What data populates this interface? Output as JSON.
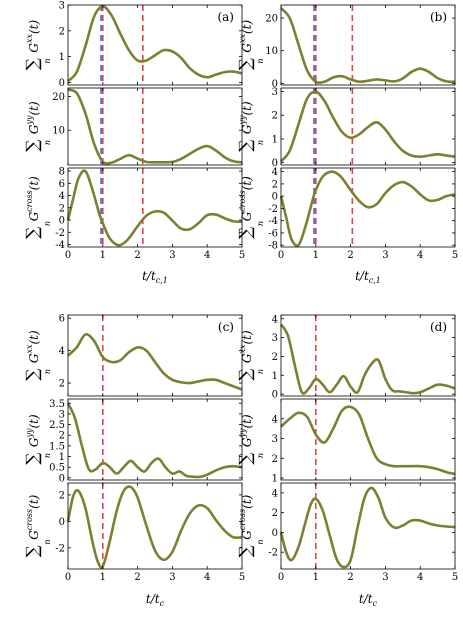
{
  "figure": {
    "colors": {
      "curve": "#7f7f30",
      "red_line": "#e0434b",
      "blue_line": "#3f5fd8",
      "axis": "#000000"
    },
    "panels": [
      {
        "id": "a",
        "label": "(a)",
        "xlabel_main": "t/t",
        "xlabel_sub": "c,1",
        "rows": [
          {
            "ylabel_main": "G",
            "ylabel_sup": "xx",
            "ylabel_arg": "(t)",
            "ylabel_sum_sub": "n",
            "ylim": [
              -0.1,
              3
            ],
            "yticks": [
              0,
              1,
              2,
              3
            ]
          },
          {
            "ylabel_main": "G",
            "ylabel_sup": "yy",
            "ylabel_arg": "(t)",
            "ylabel_sum_sub": "n",
            "ylim": [
              -0.3,
              22.5
            ],
            "yticks": [
              10,
              20
            ]
          },
          {
            "ylabel_main": "G",
            "ylabel_sup": "cross",
            "ylabel_arg": "(t)",
            "ylabel_sum_sub": "n",
            "ylim": [
              -4.4,
              8.5
            ],
            "yticks": [
              -4,
              -2,
              0,
              2,
              4,
              6,
              8
            ]
          }
        ]
      },
      {
        "id": "b",
        "label": "(b)",
        "xlabel_main": "t/t",
        "xlabel_sub": "c,1",
        "rows": [
          {
            "ylabel_main": "G",
            "ylabel_sup": "xx",
            "ylabel_arg": "(t)",
            "ylabel_sum_sub": "n",
            "ylim": [
              -0.5,
              24
            ],
            "yticks": [
              0,
              10,
              20
            ]
          },
          {
            "ylabel_main": "G",
            "ylabel_sup": "yy",
            "ylabel_arg": "(t)",
            "ylabel_sum_sub": "n",
            "ylim": [
              -0.1,
              3.15
            ],
            "yticks": [
              0,
              1,
              2,
              3
            ]
          },
          {
            "ylabel_main": "G",
            "ylabel_sup": "cross",
            "ylabel_arg": "(t)",
            "ylabel_sum_sub": "n",
            "ylim": [
              -8.3,
              4.6
            ],
            "yticks": [
              -8,
              -6,
              -4,
              -2,
              0,
              2,
              4
            ]
          }
        ]
      },
      {
        "id": "c",
        "label": "(c)",
        "xlabel_main": "t/t",
        "xlabel_sub": "c",
        "rows": [
          {
            "ylabel_main": "G",
            "ylabel_sup": "xx",
            "ylabel_arg": "(t)",
            "ylabel_sum_sub": "n",
            "ylim": [
              1.2,
              6.2
            ],
            "yticks": [
              2,
              4,
              6
            ]
          },
          {
            "ylabel_main": "G",
            "ylabel_sup": "yy",
            "ylabel_arg": "(t)",
            "ylabel_sum_sub": "n",
            "ylim": [
              -0.1,
              3.7
            ],
            "yticks": [
              0,
              0.5,
              1,
              1.5,
              2,
              2.5,
              3,
              3.5
            ]
          },
          {
            "ylabel_main": "G",
            "ylabel_sup": "cross",
            "ylabel_arg": "(t)",
            "ylabel_sum_sub": "n",
            "ylim": [
              -3.6,
              2.9
            ],
            "yticks": [
              -2,
              0,
              2
            ]
          }
        ]
      },
      {
        "id": "d",
        "label": "(d)",
        "xlabel_main": "t/t",
        "xlabel_sub": "c",
        "rows": [
          {
            "ylabel_main": "G",
            "ylabel_sup": "xx",
            "ylabel_arg": "(t)",
            "ylabel_sum_sub": "n",
            "ylim": [
              -0.1,
              4.2
            ],
            "yticks": [
              0,
              1,
              2,
              3,
              4
            ]
          },
          {
            "ylabel_main": "G",
            "ylabel_sup": "yy",
            "ylabel_arg": "(t)",
            "ylabel_sum_sub": "n",
            "ylim": [
              0.9,
              5.0
            ],
            "yticks": [
              1,
              2,
              3,
              4
            ]
          },
          {
            "ylabel_main": "G",
            "ylabel_sup": "cross",
            "ylabel_arg": "(t)",
            "ylabel_sum_sub": "n",
            "ylim": [
              -3.7,
              5.0
            ],
            "yticks": [
              -2,
              0,
              2,
              4
            ]
          }
        ]
      }
    ]
  },
  "chart_data": [
    {
      "type": "line",
      "panel": "(a)",
      "xlabel": "t/t_{c,1}",
      "xlim": [
        0,
        5
      ],
      "xticks": [
        0,
        1,
        2,
        3,
        4,
        5
      ],
      "vlines": [
        {
          "x": 0.95,
          "color": "blue"
        },
        {
          "x": 1.0,
          "color": "red"
        },
        {
          "x": 2.15,
          "color": "red"
        }
      ],
      "subplots": [
        {
          "ylabel": "∑_n G_n^{xx}(t)",
          "ylim": [
            -0.1,
            3
          ],
          "x": [
            0,
            0.25,
            0.5,
            0.75,
            1,
            1.25,
            1.5,
            1.75,
            2,
            2.25,
            2.5,
            2.75,
            3,
            3.25,
            3.5,
            3.75,
            4,
            4.25,
            4.5,
            4.75,
            5
          ],
          "y": [
            0.05,
            0.4,
            1.4,
            2.55,
            2.95,
            2.6,
            1.9,
            1.25,
            0.85,
            0.85,
            1.05,
            1.25,
            1.2,
            0.95,
            0.55,
            0.3,
            0.2,
            0.3,
            0.4,
            0.42,
            0.35
          ]
        },
        {
          "ylabel": "∑_n G_n^{yy}(t)",
          "ylim": [
            -0.3,
            22.5
          ],
          "x": [
            0,
            0.25,
            0.5,
            0.75,
            1,
            1.25,
            1.5,
            1.75,
            2,
            2.25,
            2.5,
            2.75,
            3,
            3.25,
            3.5,
            3.75,
            4,
            4.25,
            4.5,
            4.75,
            5
          ],
          "y": [
            22,
            21,
            15,
            6,
            0.7,
            0.4,
            1.5,
            2.6,
            1.6,
            0.6,
            0.5,
            0.5,
            0.6,
            1.5,
            3,
            4.5,
            5.3,
            4,
            2,
            0.8,
            0.5
          ]
        },
        {
          "ylabel": "∑_n G_n^{cross}(t)",
          "ylim": [
            -4.4,
            8.5
          ],
          "x": [
            0,
            0.15,
            0.3,
            0.5,
            0.7,
            0.9,
            1,
            1.2,
            1.45,
            1.7,
            2,
            2.25,
            2.5,
            2.75,
            3,
            3.25,
            3.5,
            3.75,
            4,
            4.25,
            4.5,
            4.75,
            5
          ],
          "y": [
            0,
            3.5,
            6.8,
            8,
            5,
            1,
            -0.5,
            -3,
            -4.1,
            -3.3,
            -1,
            0.7,
            1.4,
            1.2,
            -0.1,
            -1.4,
            -1.5,
            -0.5,
            0.8,
            0.9,
            0.3,
            -0.2,
            -0.3
          ]
        }
      ]
    },
    {
      "type": "line",
      "panel": "(b)",
      "xlabel": "t/t_{c,1}",
      "xlim": [
        0,
        5
      ],
      "xticks": [
        0,
        1,
        2,
        3,
        4,
        5
      ],
      "vlines": [
        {
          "x": 0.95,
          "color": "blue"
        },
        {
          "x": 1.0,
          "color": "red"
        },
        {
          "x": 2.05,
          "color": "red"
        }
      ],
      "subplots": [
        {
          "ylabel": "∑_n G_n^{xx}(t)",
          "ylim": [
            -0.5,
            24
          ],
          "x": [
            0,
            0.25,
            0.5,
            0.75,
            1,
            1.25,
            1.5,
            1.75,
            2,
            2.25,
            2.5,
            2.75,
            3,
            3.25,
            3.5,
            3.75,
            4,
            4.25,
            4.5,
            4.75,
            5
          ],
          "y": [
            23,
            20,
            12,
            4,
            0.5,
            0.5,
            1.8,
            2.2,
            1.2,
            0.5,
            0.8,
            1.2,
            0.9,
            0.6,
            1.5,
            3.5,
            4.5,
            3.5,
            1.6,
            0.6,
            0.5
          ]
        },
        {
          "ylabel": "∑_n G_n^{yy}(t)",
          "ylim": [
            -0.1,
            3.15
          ],
          "x": [
            0,
            0.25,
            0.5,
            0.75,
            1,
            1.25,
            1.5,
            1.75,
            2,
            2.25,
            2.5,
            2.75,
            3,
            3.25,
            3.5,
            3.75,
            4,
            4.25,
            4.5,
            4.75,
            5
          ],
          "y": [
            0.05,
            0.5,
            1.6,
            2.7,
            3.0,
            2.6,
            1.9,
            1.3,
            1.05,
            1.2,
            1.5,
            1.7,
            1.4,
            0.9,
            0.5,
            0.3,
            0.25,
            0.3,
            0.35,
            0.3,
            0.25
          ]
        },
        {
          "ylabel": "∑_n G_n^{cross}(t)",
          "ylim": [
            -8.3,
            4.6
          ],
          "x": [
            0,
            0.15,
            0.3,
            0.5,
            0.7,
            0.9,
            1,
            1.2,
            1.45,
            1.7,
            2,
            2.25,
            2.5,
            2.75,
            3,
            3.25,
            3.5,
            3.75,
            4,
            4.25,
            4.5,
            4.75,
            5
          ],
          "y": [
            0,
            -3.5,
            -7,
            -8,
            -5,
            -0.8,
            1,
            3.2,
            4,
            3.3,
            1,
            -0.8,
            -1.8,
            -1.3,
            0.5,
            1.8,
            2.3,
            1.6,
            0.3,
            -0.7,
            -0.6,
            0,
            0.3
          ]
        }
      ]
    },
    {
      "type": "line",
      "panel": "(c)",
      "xlabel": "t/t_c",
      "xlim": [
        0,
        5
      ],
      "xticks": [
        0,
        1,
        2,
        3,
        4,
        5
      ],
      "vlines": [
        {
          "x": 1.0,
          "color": "red"
        }
      ],
      "subplots": [
        {
          "ylabel": "∑_n G_n^{xx}(t)",
          "ylim": [
            1.2,
            6.2
          ],
          "x": [
            0,
            0.25,
            0.5,
            0.75,
            1,
            1.25,
            1.5,
            1.75,
            2,
            2.25,
            2.5,
            2.75,
            3,
            3.25,
            3.5,
            3.75,
            4,
            4.25,
            4.5,
            4.75,
            5
          ],
          "y": [
            3.7,
            4.2,
            5.0,
            4.6,
            3.6,
            3.3,
            3.4,
            3.9,
            4.2,
            4.0,
            3.3,
            2.6,
            2.2,
            2.05,
            2.0,
            2.1,
            2.2,
            2.2,
            2.0,
            1.8,
            1.6
          ]
        },
        {
          "ylabel": "∑_n G_n^{yy}(t)",
          "ylim": [
            -0.1,
            3.7
          ],
          "x": [
            0,
            0.2,
            0.4,
            0.6,
            0.8,
            1,
            1.2,
            1.4,
            1.6,
            1.8,
            2,
            2.2,
            2.4,
            2.6,
            2.8,
            3,
            3.2,
            3.4,
            3.6,
            3.8,
            4,
            4.25,
            4.5,
            4.75,
            5
          ],
          "y": [
            3.5,
            2.8,
            1.5,
            0.4,
            0.4,
            0.7,
            0.5,
            0.2,
            0.5,
            0.8,
            0.5,
            0.3,
            0.7,
            0.9,
            0.5,
            0.2,
            0.3,
            0.1,
            0.05,
            0.05,
            0.15,
            0.35,
            0.5,
            0.55,
            0.5
          ]
        },
        {
          "ylabel": "∑_n G_n^{cross}(t)",
          "ylim": [
            -3.6,
            2.9
          ],
          "x": [
            0,
            0.15,
            0.3,
            0.5,
            0.7,
            0.85,
            1,
            1.2,
            1.4,
            1.6,
            1.8,
            2,
            2.25,
            2.5,
            2.75,
            3,
            3.25,
            3.5,
            3.75,
            4,
            4.25,
            4.5,
            4.75,
            5
          ],
          "y": [
            0,
            1.9,
            2.3,
            1,
            -1.5,
            -3,
            -3.4,
            -1.5,
            0.8,
            2.3,
            2.6,
            1.8,
            -0.3,
            -2.2,
            -2.9,
            -2.3,
            -0.7,
            0.6,
            1.2,
            1,
            0.1,
            -0.7,
            -1.2,
            -1.2
          ]
        }
      ]
    },
    {
      "type": "line",
      "panel": "(d)",
      "xlabel": "t/t_c",
      "xlim": [
        0,
        5
      ],
      "xticks": [
        0,
        1,
        2,
        3,
        4,
        5
      ],
      "vlines": [
        {
          "x": 1.0,
          "color": "red"
        }
      ],
      "subplots": [
        {
          "ylabel": "∑_n G_n^{xx}(t)",
          "ylim": [
            -0.1,
            4.2
          ],
          "x": [
            0,
            0.2,
            0.4,
            0.6,
            0.8,
            1,
            1.2,
            1.4,
            1.6,
            1.8,
            2,
            2.2,
            2.4,
            2.6,
            2.8,
            3,
            3.2,
            3.4,
            3.6,
            3.8,
            4,
            4.25,
            4.5,
            4.75,
            5
          ],
          "y": [
            3.7,
            3.1,
            1.5,
            0.1,
            0.3,
            0.8,
            0.5,
            0.1,
            0.5,
            0.95,
            0.4,
            0.1,
            1.0,
            1.6,
            1.8,
            0.8,
            0.2,
            0.15,
            0.1,
            0.05,
            0.1,
            0.3,
            0.5,
            0.45,
            0.3
          ]
        },
        {
          "ylabel": "∑_n G_n^{yy}(t)",
          "ylim": [
            0.9,
            5.0
          ],
          "x": [
            0,
            0.25,
            0.5,
            0.75,
            1,
            1.25,
            1.5,
            1.75,
            2,
            2.25,
            2.5,
            2.75,
            3,
            3.25,
            3.5,
            3.75,
            4,
            4.25,
            4.5,
            4.75,
            5
          ],
          "y": [
            3.6,
            4.0,
            4.3,
            4.1,
            3.2,
            2.8,
            3.5,
            4.4,
            4.6,
            4.2,
            3.0,
            2.0,
            1.7,
            1.6,
            1.6,
            1.6,
            1.6,
            1.55,
            1.45,
            1.3,
            1.2
          ]
        },
        {
          "ylabel": "∑_n G_n^{cross}(t)",
          "ylim": [
            -3.7,
            5.0
          ],
          "x": [
            0,
            0.15,
            0.3,
            0.5,
            0.7,
            0.85,
            1,
            1.2,
            1.4,
            1.6,
            1.8,
            2,
            2.2,
            2.4,
            2.6,
            2.8,
            3,
            3.25,
            3.5,
            3.75,
            4,
            4.25,
            4.5,
            4.75,
            5
          ],
          "y": [
            0,
            -2,
            -2.8,
            -1.5,
            1,
            2.8,
            3.4,
            2.2,
            -0.3,
            -2.7,
            -3.5,
            -2.8,
            0.5,
            3.5,
            4.5,
            3.5,
            1.5,
            0.5,
            0.7,
            1.2,
            1.2,
            0.9,
            0.7,
            0.6,
            0.55
          ]
        }
      ]
    }
  ]
}
